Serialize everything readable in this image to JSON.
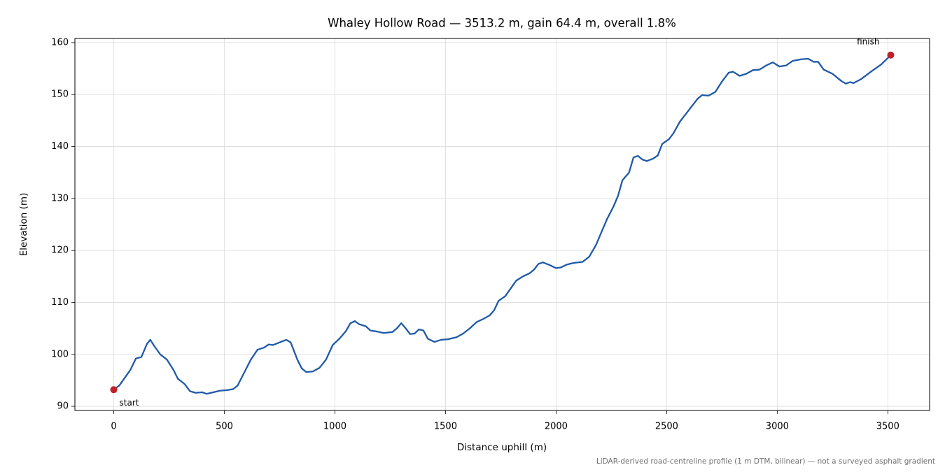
{
  "chart_data": {
    "type": "line",
    "title": "Whaley Hollow Road — 3513.2 m, gain 64.4 m, overall 1.8%",
    "xlabel": "Distance uphill (m)",
    "ylabel": "Elevation (m)",
    "note": "LiDAR-derived road-centreline profile (1 m DTM, bilinear) — not a surveyed asphalt gradient",
    "x": [
      0,
      25,
      50,
      75,
      100,
      125,
      150,
      165,
      185,
      210,
      240,
      270,
      290,
      320,
      345,
      370,
      400,
      420,
      450,
      480,
      510,
      540,
      560,
      590,
      620,
      650,
      680,
      700,
      720,
      750,
      780,
      800,
      830,
      850,
      870,
      900,
      930,
      960,
      990,
      1020,
      1050,
      1070,
      1090,
      1110,
      1140,
      1160,
      1190,
      1220,
      1260,
      1280,
      1300,
      1320,
      1340,
      1360,
      1380,
      1400,
      1420,
      1450,
      1480,
      1510,
      1550,
      1580,
      1610,
      1640,
      1670,
      1700,
      1720,
      1740,
      1770,
      1800,
      1820,
      1850,
      1880,
      1900,
      1920,
      1940,
      1970,
      2000,
      2020,
      2050,
      2080,
      2120,
      2150,
      2180,
      2200,
      2230,
      2260,
      2280,
      2300,
      2330,
      2350,
      2370,
      2390,
      2410,
      2440,
      2460,
      2480,
      2510,
      2530,
      2560,
      2600,
      2640,
      2660,
      2690,
      2720,
      2750,
      2780,
      2800,
      2830,
      2860,
      2890,
      2920,
      2950,
      2980,
      3010,
      3040,
      3070,
      3110,
      3140,
      3165,
      3185,
      3210,
      3250,
      3290,
      3310,
      3330,
      3345,
      3380,
      3430,
      3470,
      3513.2
    ],
    "series": [
      {
        "color": "#1f5aa8",
        "values": [
          93.2,
          94,
          95.5,
          97,
          99.2,
          99.5,
          102,
          102.8,
          101.5,
          100,
          99,
          97,
          95.3,
          94.3,
          92.9,
          92.6,
          92.7,
          92.4,
          92.7,
          93,
          93.1,
          93.3,
          94,
          96.5,
          99,
          100.9,
          101.3,
          101.9,
          101.8,
          102.3,
          102.8,
          102.3,
          99,
          97.3,
          96.6,
          96.7,
          97.4,
          99,
          101.8,
          103,
          104.5,
          106,
          106.4,
          105.8,
          105.4,
          104.6,
          104.4,
          104.1,
          104.3,
          105,
          106,
          105,
          103.9,
          104,
          104.8,
          104.6,
          103,
          102.4,
          102.8,
          102.9,
          103.3,
          104,
          105,
          106.2,
          106.8,
          107.5,
          108.5,
          110.3,
          111.2,
          113,
          114.2,
          115,
          115.6,
          116.3,
          117.4,
          117.7,
          117.2,
          116.6,
          116.7,
          117.3,
          117.6,
          117.8,
          118.8,
          121,
          123,
          126,
          128.5,
          130.5,
          133.5,
          135,
          137.9,
          138.2,
          137.5,
          137.2,
          137.7,
          138.3,
          140.5,
          141.4,
          142.5,
          144.8,
          147,
          149.2,
          149.9,
          149.8,
          150.5,
          152.5,
          154.2,
          154.4,
          153.6,
          154,
          154.7,
          154.8,
          155.6,
          156.2,
          155.4,
          155.6,
          156.5,
          156.8,
          156.9,
          156.3,
          156.3,
          154.8,
          154,
          152.6,
          152.1,
          152.4,
          152.2,
          153,
          154.6,
          155.8,
          157.6
        ]
      }
    ],
    "annotations": [
      {
        "label": "start",
        "x": 0,
        "y": 93.2,
        "color": "#c0202a"
      },
      {
        "label": "finish",
        "x": 3513.2,
        "y": 157.6,
        "color": "#c0202a"
      }
    ],
    "xlim": [
      -175.7,
      3688.9
    ],
    "ylim": [
      89.2,
      160.8
    ],
    "xticks": [
      0,
      500,
      1000,
      1500,
      2000,
      2500,
      3000,
      3500
    ],
    "yticks": [
      90,
      100,
      110,
      120,
      130,
      140,
      150,
      160
    ],
    "grid": true
  }
}
